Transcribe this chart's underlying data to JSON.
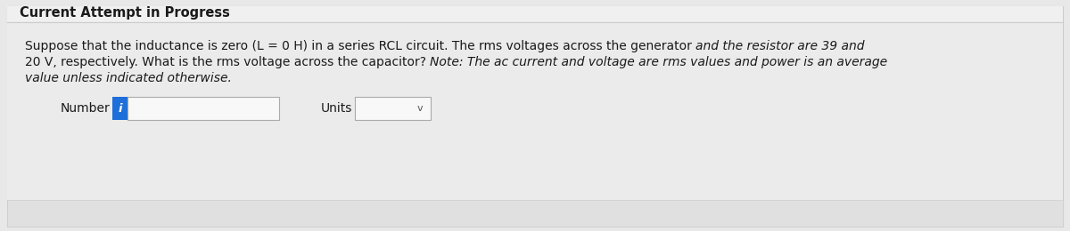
{
  "title": "Current Attempt in Progress",
  "title_fontsize": 10.5,
  "title_color": "#1a1a1a",
  "background_color": "#e8e8e8",
  "card_color": "#f0f0f0",
  "card_inner_color": "#ebebeb",
  "line1_normal": "Suppose that the inductance is zero (L = 0 H) in a series RCL circuit. The rms voltages across the generator ",
  "line1_italic": "and the resistor are 39 and",
  "line2_normal": "20 V, respectively. What is the rms voltage across the capacitor? ",
  "line2_italic": "Note: The ac current and voltage are rms values and power is an average",
  "line3_italic": "value unless indicated otherwise.",
  "para_fontsize": 10.0,
  "para_color": "#1a1a1a",
  "label_number": "Number",
  "label_units": "Units",
  "label_fontsize": 10.0,
  "info_button_color": "#1e6fd9",
  "info_button_text": "i",
  "dropdown_arrow": "v"
}
